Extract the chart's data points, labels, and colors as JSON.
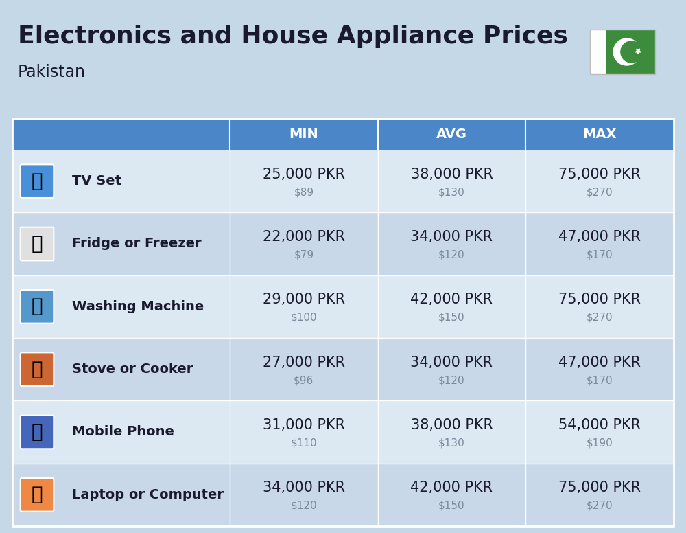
{
  "title": "Electronics and House Appliance Prices",
  "subtitle": "Pakistan",
  "bg_color": "#c5d8e8",
  "header_bg": "#4a86c8",
  "header_text": "#ffffff",
  "row_bg_light": "#dce8f2",
  "row_bg_dark": "#c8d8e8",
  "text_dark": "#1a1a2e",
  "text_gray": "#7a8a9a",
  "divider_color": "#aabccc",
  "columns": [
    "MIN",
    "AVG",
    "MAX"
  ],
  "rows": [
    {
      "name": "TV Set",
      "min_pkr": "25,000 PKR",
      "min_usd": "$89",
      "avg_pkr": "38,000 PKR",
      "avg_usd": "$130",
      "max_pkr": "75,000 PKR",
      "max_usd": "$270"
    },
    {
      "name": "Fridge or Freezer",
      "min_pkr": "22,000 PKR",
      "min_usd": "$79",
      "avg_pkr": "34,000 PKR",
      "avg_usd": "$120",
      "max_pkr": "47,000 PKR",
      "max_usd": "$170"
    },
    {
      "name": "Washing Machine",
      "min_pkr": "29,000 PKR",
      "min_usd": "$100",
      "avg_pkr": "42,000 PKR",
      "avg_usd": "$150",
      "max_pkr": "75,000 PKR",
      "max_usd": "$270"
    },
    {
      "name": "Stove or Cooker",
      "min_pkr": "27,000 PKR",
      "min_usd": "$96",
      "avg_pkr": "34,000 PKR",
      "avg_usd": "$120",
      "max_pkr": "47,000 PKR",
      "max_usd": "$170"
    },
    {
      "name": "Mobile Phone",
      "min_pkr": "31,000 PKR",
      "min_usd": "$110",
      "avg_pkr": "38,000 PKR",
      "avg_usd": "$130",
      "max_pkr": "54,000 PKR",
      "max_usd": "$190"
    },
    {
      "name": "Laptop or Computer",
      "min_pkr": "34,000 PKR",
      "min_usd": "$120",
      "avg_pkr": "42,000 PKR",
      "avg_usd": "$150",
      "max_pkr": "75,000 PKR",
      "max_usd": "$270"
    }
  ],
  "row_icons": [
    "📺",
    "🍜",
    "🧹",
    "🔥",
    "📱",
    "💻"
  ],
  "title_fontsize": 26,
  "subtitle_fontsize": 17,
  "header_fontsize": 14,
  "item_name_fontsize": 14,
  "price_pkr_fontsize": 15,
  "price_usd_fontsize": 11
}
